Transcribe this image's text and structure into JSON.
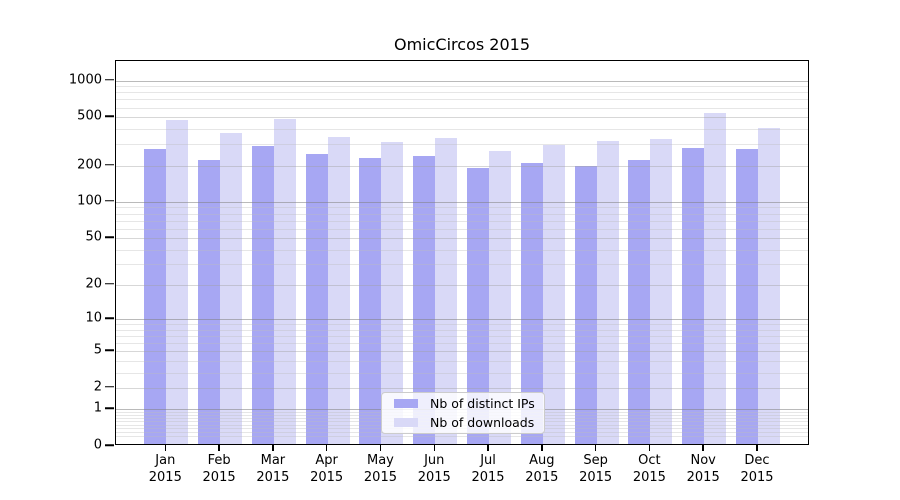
{
  "title": "OmicCircos 2015",
  "chart_data": {
    "type": "bar",
    "title": "OmicCircos 2015",
    "categories": [
      "Jan",
      "Feb",
      "Mar",
      "Apr",
      "May",
      "Jun",
      "Jul",
      "Aug",
      "Sep",
      "Oct",
      "Nov",
      "Dec"
    ],
    "year": "2015",
    "series": [
      {
        "name": "Nb of distinct IPs",
        "color": "#a7a7f3",
        "values": [
          265,
          212,
          277,
          240,
          222,
          231,
          185,
          202,
          191,
          212,
          269,
          262
        ]
      },
      {
        "name": "Nb of downloads",
        "color": "#d9d9f7",
        "values": [
          455,
          357,
          462,
          331,
          301,
          325,
          252,
          286,
          304,
          320,
          521,
          393
        ]
      }
    ],
    "yticks": [
      0,
      1,
      2,
      5,
      10,
      20,
      50,
      100,
      200,
      500,
      1000
    ],
    "y_scale": "log10(value+1)",
    "ylim": [
      0,
      1450
    ],
    "legend_position": "lower-center-inside",
    "grid": {
      "strong_lines": [
        1,
        10,
        100,
        1000
      ],
      "medium_lines": [
        2,
        5,
        20,
        50,
        200,
        500
      ],
      "minor_lines": [
        0.2,
        0.3,
        0.4,
        0.5,
        0.6,
        0.7,
        0.8,
        0.9,
        3,
        4,
        6,
        7,
        8,
        9,
        30,
        40,
        60,
        70,
        80,
        90,
        300,
        400,
        600,
        700,
        800,
        900
      ]
    }
  }
}
